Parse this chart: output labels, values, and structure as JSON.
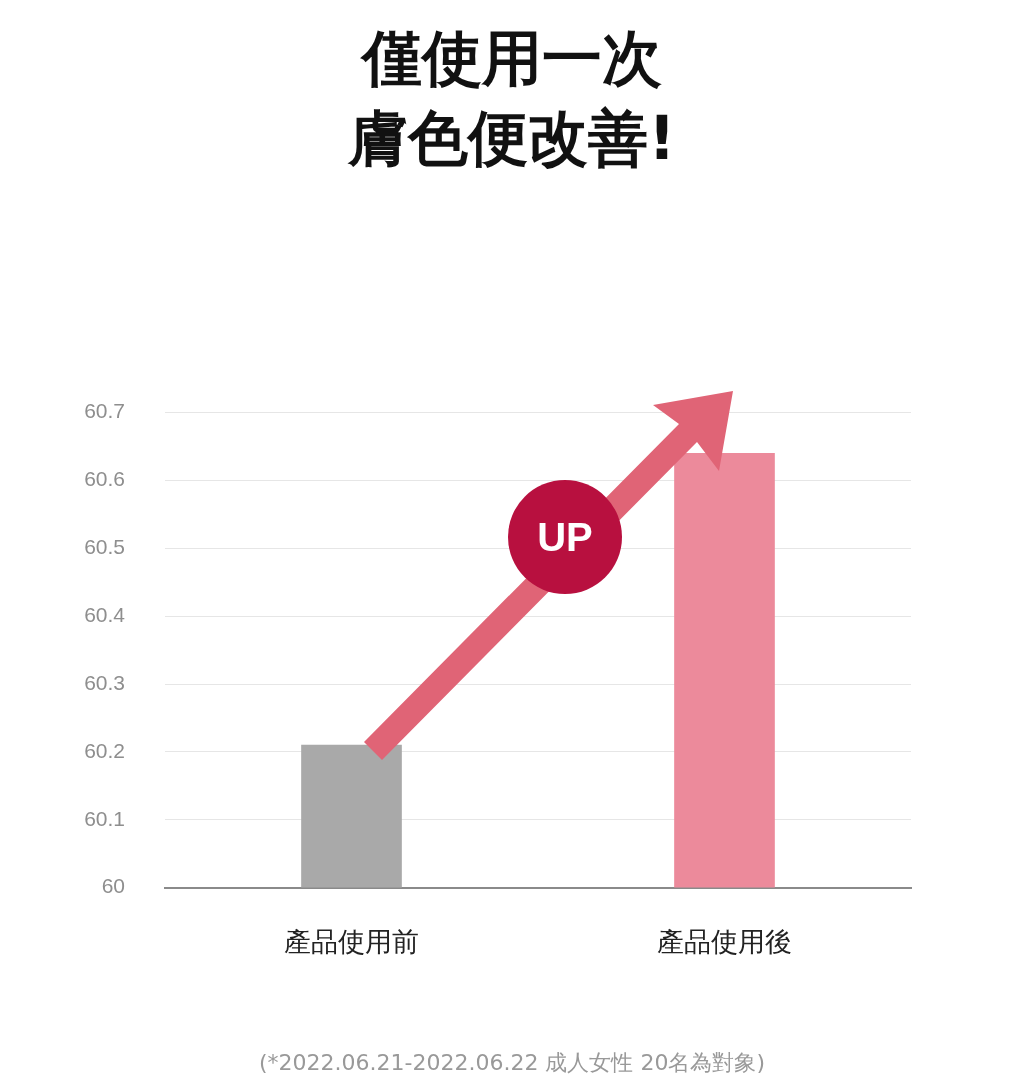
{
  "chart_data": {
    "type": "bar",
    "title": "僅使用一次膚色便改善!",
    "categories": [
      "產品使用前",
      "產品使用後"
    ],
    "values": [
      60.21,
      60.64
    ],
    "colors": [
      "#a9a9a9",
      "#ec8a9b"
    ],
    "ylim": [
      60,
      60.7
    ],
    "yticks": [
      60,
      60.1,
      60.2,
      60.3,
      60.4,
      60.5,
      60.6,
      60.7
    ],
    "grid": "y",
    "legend": false,
    "annotations": [
      "UP",
      "(*2022.06.21-2022.06.22 成人女性 20名為對象)"
    ]
  }
}
